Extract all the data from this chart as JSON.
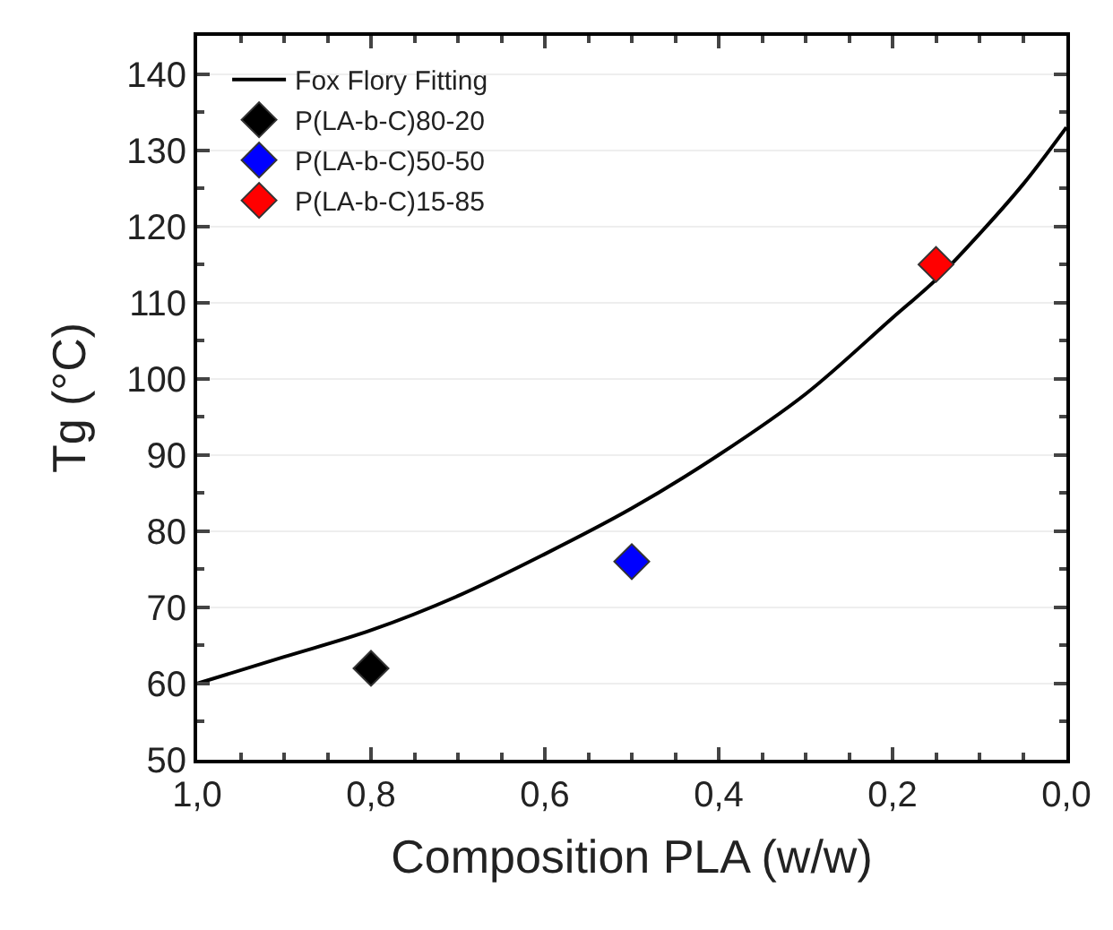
{
  "chart_data": {
    "type": "scatter",
    "xlabel": "Composition PLA (w/w)",
    "ylabel": "Tg (°C)",
    "xlim": [
      1.0,
      0.0
    ],
    "xticks": [
      {
        "value": 1.0,
        "label": "1,0"
      },
      {
        "value": 0.8,
        "label": "0,8"
      },
      {
        "value": 0.6,
        "label": "0,6"
      },
      {
        "value": 0.4,
        "label": "0,4"
      },
      {
        "value": 0.2,
        "label": "0,2"
      },
      {
        "value": 0.0,
        "label": "0,0"
      }
    ],
    "ylim": [
      50,
      145
    ],
    "yticks": [
      50,
      60,
      70,
      80,
      90,
      100,
      110,
      120,
      130,
      140
    ],
    "grid": "y",
    "legend": "top left",
    "marker": "diamond",
    "series": [
      {
        "name": "Fox Flory Fitting",
        "type": "line",
        "marker": "none",
        "color": "#000000",
        "x": [
          1.0,
          0.9,
          0.8,
          0.7,
          0.6,
          0.5,
          0.4,
          0.3,
          0.2,
          0.15,
          0.1,
          0.05,
          0.0
        ],
        "values": [
          60,
          63.5,
          67,
          71.5,
          77,
          83,
          90,
          98,
          108,
          113,
          119,
          125.5,
          133
        ]
      },
      {
        "name": "P(LA-b-C)80-20",
        "color": "#000000",
        "x": [
          0.8
        ],
        "values": [
          62
        ]
      },
      {
        "name": "P(LA-b-C)50-50",
        "color": "#0000ff",
        "x": [
          0.5
        ],
        "values": [
          76
        ]
      },
      {
        "name": "P(LA-b-C)15-85",
        "color": "#ff0000",
        "x": [
          0.15
        ],
        "values": [
          115
        ]
      }
    ]
  }
}
